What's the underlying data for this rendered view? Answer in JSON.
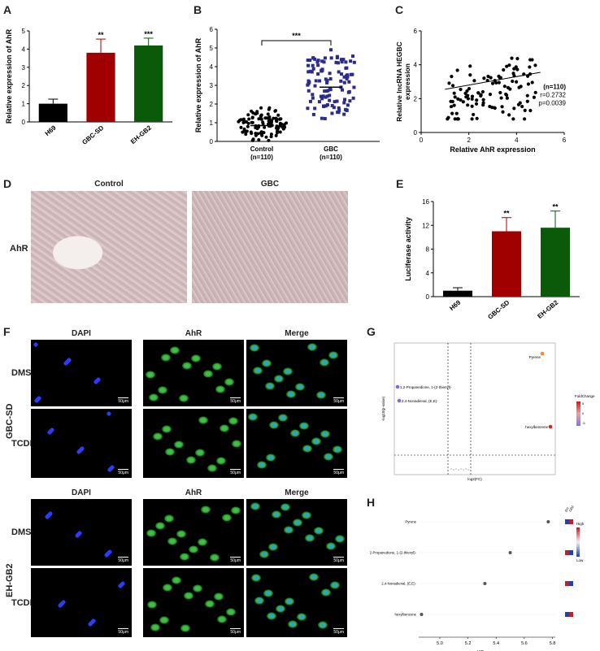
{
  "panels": {
    "A": {
      "label": "A",
      "ylabel": "Relative expression of AhR",
      "ylim": [
        0,
        5
      ],
      "yticks": [
        "0",
        "1",
        "2",
        "3",
        "4",
        "5"
      ],
      "categories": [
        "H69",
        "GBC-SD",
        "EH-GB2"
      ],
      "values": [
        1.0,
        3.8,
        4.2
      ],
      "errors": [
        0.25,
        0.75,
        0.4
      ],
      "sig": [
        "",
        "**",
        "***"
      ],
      "colors": [
        "#000000",
        "#a00000",
        "#0a5a0a"
      ]
    },
    "B": {
      "label": "B",
      "ylabel": "Relative expression of AhR",
      "ylim": [
        0,
        6
      ],
      "yticks": [
        "0",
        "1",
        "2",
        "3",
        "4",
        "5",
        "6"
      ],
      "categories": [
        "Control",
        "GBC"
      ],
      "sublabels": [
        "(n=110)",
        "(n=110)"
      ],
      "sig": "***"
    },
    "C": {
      "label": "C",
      "ylabel_lines": [
        "Relative lncRNA HEGBC",
        "expression"
      ],
      "xlabel": "Relative AhR expression",
      "xticks": [
        "0",
        "2",
        "4",
        "6"
      ],
      "yticks": [
        "0",
        "2",
        "4",
        "6"
      ],
      "stats": [
        "(n=110)",
        "r=0.2732",
        "p=0.0039"
      ]
    },
    "D": {
      "label": "D",
      "titles": [
        "Control",
        "GBC"
      ],
      "row": "AhR"
    },
    "E": {
      "label": "E",
      "ylabel": "Luciferase activity",
      "ylim": [
        0,
        16
      ],
      "yticks": [
        "0",
        "4",
        "8",
        "12",
        "16"
      ],
      "categories": [
        "H69",
        "GBC-SD",
        "EH-GB2"
      ],
      "values": [
        1.0,
        11.0,
        11.6
      ],
      "errors": [
        0.5,
        2.3,
        2.8
      ],
      "sig": [
        "",
        "**",
        "**"
      ],
      "colors": [
        "#000000",
        "#a00000",
        "#0a5a0a"
      ]
    },
    "F": {
      "label": "F",
      "columns": [
        "DAPI",
        "AhR",
        "Merge"
      ],
      "rows": [
        "DMSO",
        "TCDD"
      ],
      "groups": [
        "GBC-SD",
        "EH-GB2"
      ],
      "scalebar": "50μm"
    },
    "G": {
      "label": "G",
      "ylabel": "-log10(p-value)",
      "xlabel": "log2(FC)",
      "legend_title": "FoldChange",
      "legend_ticks": [
        "5",
        "0",
        "-5"
      ],
      "points": [
        "Pyrene",
        "1,2-Propanedione, 1-(2-thienyl)-",
        "2,4-Nonadienal, (E,E)-",
        "hexylbenzene"
      ]
    },
    "H": {
      "label": "H",
      "xlabel": "VIP scores",
      "xticks": [
        "5.0",
        "5.2",
        "5.4",
        "5.6",
        "5.8"
      ],
      "items": [
        "Pyrene",
        "1,2-Propanedione, 1-(2-thienyl)-",
        "2,4-Nonadienal, (E,E)-",
        "hexylbenzene"
      ],
      "vip": [
        5.77,
        5.5,
        5.32,
        4.87
      ],
      "legend_high": "High",
      "legend_low": "Low",
      "cols": [
        "EH",
        "GB2"
      ]
    }
  },
  "chart_data": [
    {
      "type": "bar",
      "categories": [
        "H69",
        "GBC-SD",
        "EH-GB2"
      ],
      "values": [
        1.0,
        3.8,
        4.2
      ],
      "ylabel": "Relative expression of AhR",
      "ylim": [
        0,
        5
      ]
    },
    {
      "type": "scatter",
      "categories": [
        "Control",
        "GBC"
      ],
      "ylabel": "Relative expression of AhR",
      "ylim": [
        0,
        6
      ]
    },
    {
      "type": "scatter",
      "xlabel": "Relative AhR expression",
      "ylabel": "Relative lncRNA HEGBC expression",
      "xlim": [
        0,
        6
      ],
      "ylim": [
        0,
        6
      ]
    },
    {
      "type": "bar",
      "categories": [
        "H69",
        "GBC-SD",
        "EH-GB2"
      ],
      "values": [
        1.0,
        11.0,
        11.6
      ],
      "ylabel": "Luciferase activity",
      "ylim": [
        0,
        16
      ]
    },
    {
      "type": "scatter",
      "categories": [
        "Pyrene",
        "1,2-Propanedione, 1-(2-thienyl)-",
        "2,4-Nonadienal, (E,E)-",
        "hexylbenzene"
      ],
      "values": [
        5.77,
        5.5,
        5.32,
        4.87
      ],
      "xlabel": "VIP scores"
    }
  ]
}
